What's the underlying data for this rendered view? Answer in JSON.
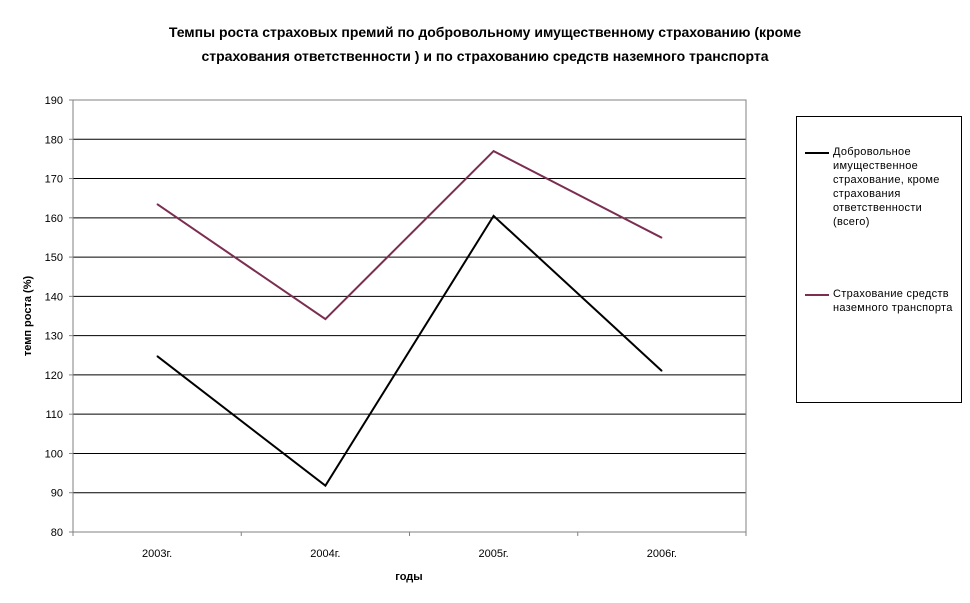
{
  "chart_data": {
    "type": "line",
    "title_lines": [
      "Темпы роста страховых премий по добровольному имущественному страхованию (кроме",
      "страхования ответственности ) и по страхованию средств наземного транспорта"
    ],
    "xlabel": "годы",
    "ylabel": "темп роста (%)",
    "categories": [
      "2003г.",
      "2004г.",
      "2005г.",
      "2006г."
    ],
    "ylim": [
      80,
      190
    ],
    "yticks": [
      "80",
      "90",
      "100",
      "110",
      "120",
      "130",
      "140",
      "150",
      "160",
      "170",
      "180",
      "190"
    ],
    "grid": true,
    "legend_position": "right",
    "series": [
      {
        "name": "Добровольное имущественное страхование, кроме страхования ответственности (всего)",
        "color": "#000000",
        "values": [
          124.8,
          91.8,
          160.5,
          121.0
        ]
      },
      {
        "name": "Страхование средств наземного транспорта",
        "color": "#7b2d52",
        "values": [
          163.5,
          134.2,
          177.0,
          154.9
        ]
      }
    ]
  }
}
